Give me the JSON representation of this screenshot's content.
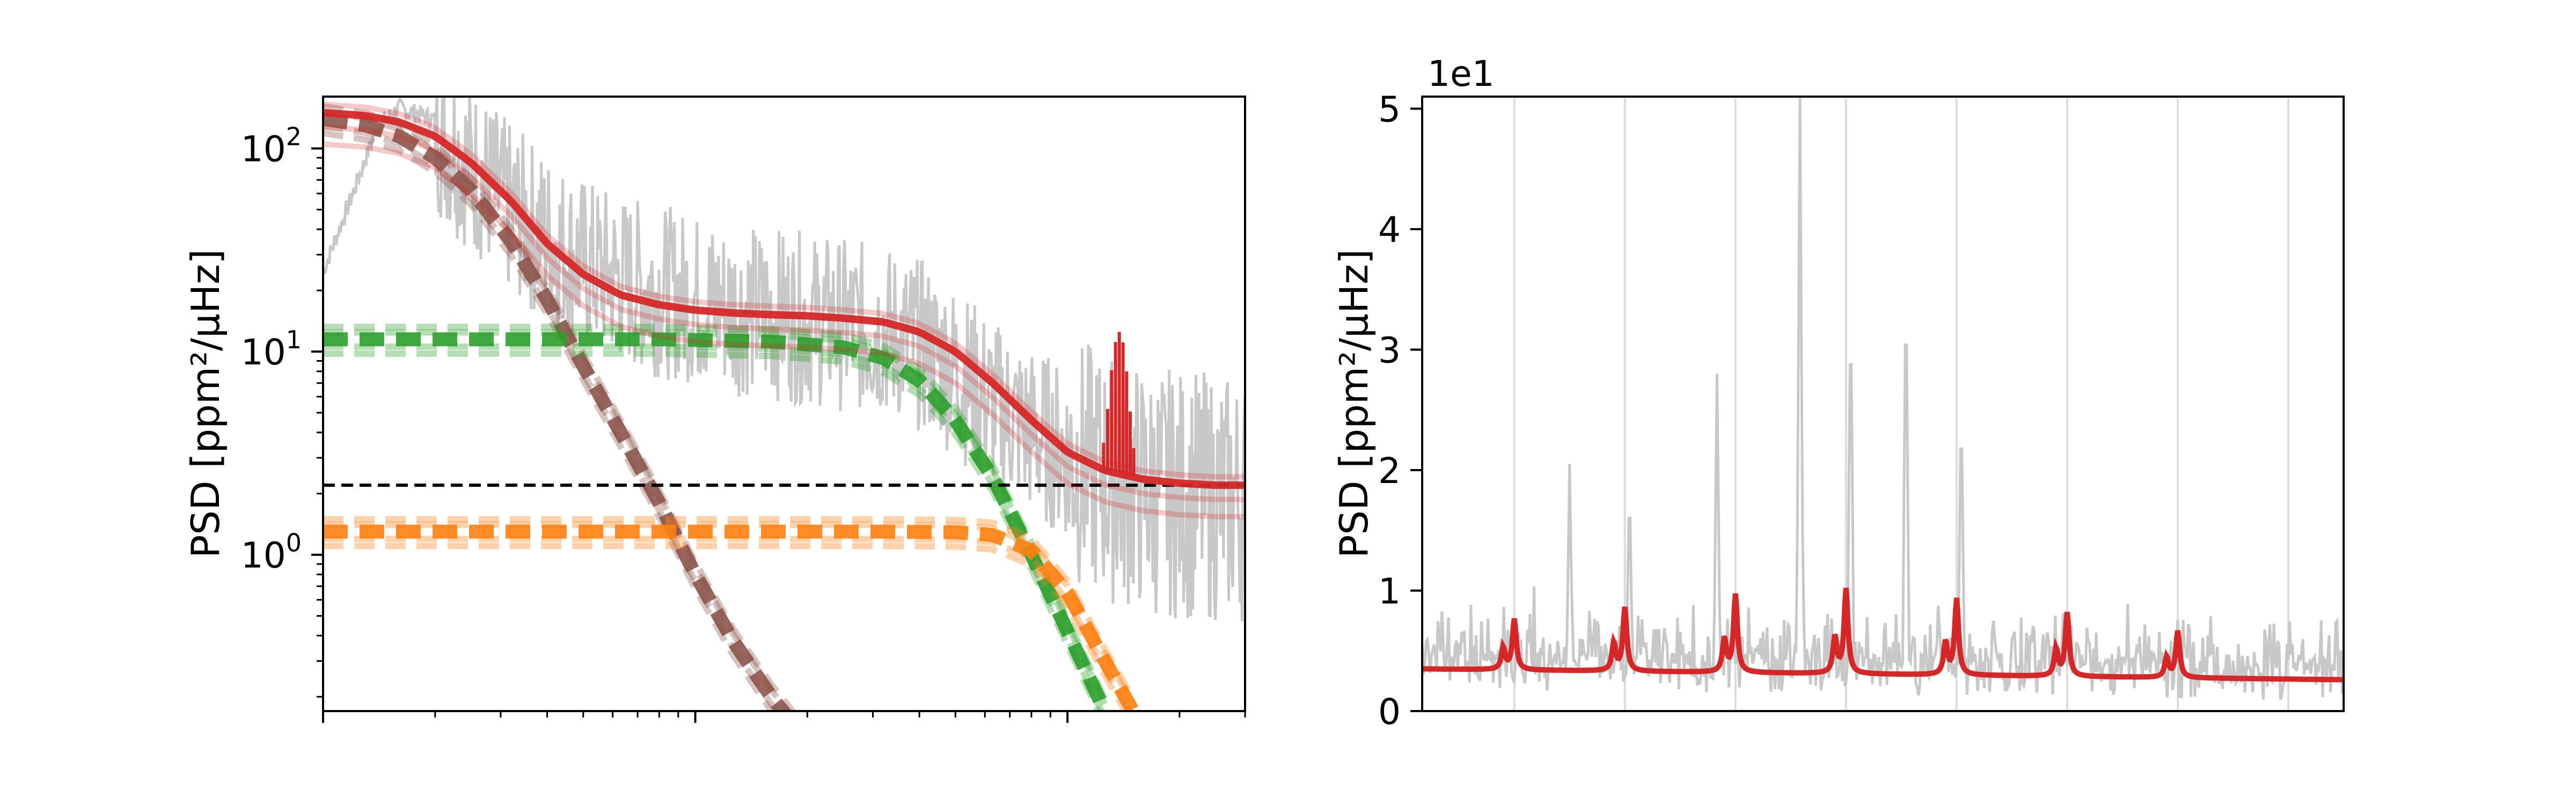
{
  "chart_data": [
    {
      "type": "line",
      "panel": "left",
      "ylabel": "PSD [ppm²/μHz]",
      "yscale": "log",
      "xscale": "log",
      "xlim": [
        1,
        300
      ],
      "ylim": [
        0.17,
        180
      ],
      "ytick_labels": [
        {
          "base": "10",
          "exp": "2",
          "value": 100
        },
        {
          "base": "10",
          "exp": "1",
          "value": 10
        },
        {
          "base": "10",
          "exp": "0",
          "value": 1
        }
      ],
      "white_noise_level": 2.2,
      "colors": {
        "observed": "#c8c8c8",
        "total_model": "#d62728",
        "granulation_low": "#8c564b",
        "granulation_mid": "#2ca02c",
        "granulation_high": "#ff7f0e",
        "white_noise": "#000000"
      },
      "series": [
        {
          "role": "observed",
          "style": "solid",
          "color": "#c8c8c8",
          "x": [
            1.0,
            1.2,
            1.4,
            1.6,
            2.0,
            2.5,
            3.2,
            4.0,
            5.0,
            6.3,
            8.0,
            10,
            12.6,
            16,
            20,
            25,
            32,
            40,
            50,
            63,
            80,
            100,
            126,
            160,
            200,
            250,
            300
          ],
          "y": [
            25,
            60,
            130,
            160,
            140,
            90,
            55,
            40,
            30,
            25,
            22,
            20,
            18,
            17,
            16,
            15,
            14,
            12,
            9,
            6,
            4.5,
            3.5,
            2.8,
            2.4,
            2.3,
            2.2,
            2.2
          ]
        },
        {
          "role": "total_model",
          "style": "solid",
          "color": "#d62728",
          "x": [
            1.0,
            1.3,
            1.6,
            2.0,
            2.5,
            3.2,
            4.0,
            5.0,
            6.3,
            8.0,
            10,
            12.6,
            16,
            20,
            25,
            32,
            40,
            50,
            63,
            80,
            100,
            126,
            160,
            200,
            250,
            300
          ],
          "y": [
            150,
            145,
            135,
            115,
            85,
            55,
            34,
            24,
            19,
            17,
            16,
            15.5,
            15.2,
            15,
            14.6,
            14,
            12.5,
            10,
            7,
            4.6,
            3.2,
            2.6,
            2.35,
            2.25,
            2.2,
            2.2
          ]
        },
        {
          "role": "granulation_low",
          "style": "dashed",
          "color": "#8c564b",
          "x": [
            1.0,
            1.3,
            1.6,
            2.0,
            2.5,
            3.2,
            4.0,
            5.0,
            6.3,
            8.0,
            10,
            12.6,
            16,
            20
          ],
          "y": [
            140,
            130,
            115,
            90,
            62,
            35,
            18,
            8.5,
            4.0,
            1.8,
            0.8,
            0.38,
            0.2,
            0.12
          ]
        },
        {
          "role": "granulation_mid",
          "style": "dashed",
          "color": "#2ca02c",
          "x": [
            1.0,
            2.0,
            4.0,
            8.0,
            16,
            25,
            32,
            40,
            50,
            63,
            80,
            100,
            126
          ],
          "y": [
            11.5,
            11.5,
            11.5,
            11.5,
            11.2,
            10.5,
            9.3,
            7.2,
            4.6,
            2.4,
            1.0,
            0.42,
            0.17
          ]
        },
        {
          "role": "granulation_high",
          "style": "dashed",
          "color": "#ff7f0e",
          "x": [
            1.0,
            2.0,
            4.0,
            8.0,
            16,
            32,
            50,
            63,
            80,
            100,
            126,
            150
          ],
          "y": [
            1.3,
            1.3,
            1.3,
            1.3,
            1.3,
            1.3,
            1.29,
            1.25,
            1.05,
            0.65,
            0.3,
            0.17
          ]
        }
      ]
    },
    {
      "type": "line",
      "panel": "right",
      "ylabel": "PSD [ppm²/μHz]",
      "offset_label": "1e1",
      "ylim": [
        0,
        5.1
      ],
      "yticks": [
        0,
        1,
        2,
        3,
        4,
        5
      ],
      "ytick_labels": [
        "0",
        "1",
        "2",
        "3",
        "4",
        "5"
      ],
      "xlim": [
        0,
        1
      ],
      "mode_marker_lines": [
        0.1,
        0.22,
        0.34,
        0.46,
        0.58,
        0.7,
        0.82,
        0.94
      ],
      "model_peaks": [
        {
          "x": 0.1,
          "height": 0.6
        },
        {
          "x": 0.22,
          "height": 0.75
        },
        {
          "x": 0.34,
          "height": 0.92
        },
        {
          "x": 0.46,
          "height": 1.0
        },
        {
          "x": 0.58,
          "height": 0.9
        },
        {
          "x": 0.7,
          "height": 0.75
        },
        {
          "x": 0.82,
          "height": 0.55
        }
      ],
      "observed_spikes": [
        {
          "x": 0.16,
          "height": 2.05
        },
        {
          "x": 0.225,
          "height": 1.95
        },
        {
          "x": 0.32,
          "height": 2.8
        },
        {
          "x": 0.41,
          "height": 5.1
        },
        {
          "x": 0.465,
          "height": 3.5
        },
        {
          "x": 0.525,
          "height": 3.7
        },
        {
          "x": 0.585,
          "height": 2.65
        }
      ],
      "model_baseline": [
        3.5,
        2.6
      ],
      "colors": {
        "observed": "#c8c8c8",
        "model": "#d62728",
        "marker": "#dcdcdc"
      }
    }
  ]
}
